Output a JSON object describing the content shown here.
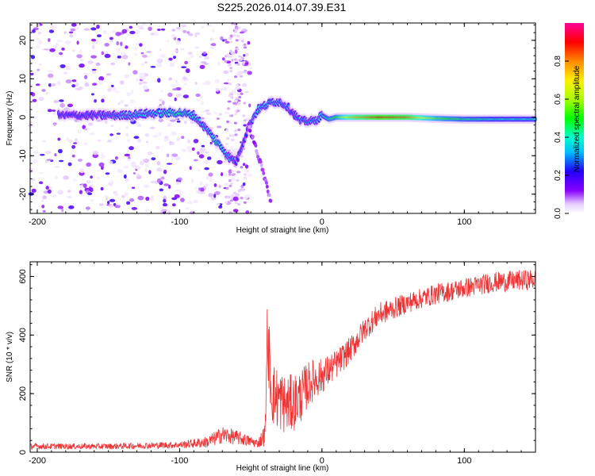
{
  "figure": {
    "title": "S225.2026.014.07.39.E31"
  },
  "chart_data": [
    {
      "type": "heatmap",
      "title": "S225.2026.014.07.39.E31",
      "xlabel": "Height of straight line (km)",
      "ylabel": "Frequency (Hz)",
      "xlim": [
        -205,
        150
      ],
      "ylim": [
        -25,
        24.5
      ],
      "xticks": [
        -200,
        -100,
        0,
        100
      ],
      "xtick_labels": [
        "-200",
        "-100",
        "0",
        "100"
      ],
      "yticks": [
        -20,
        -10,
        0,
        10,
        20
      ],
      "ytick_labels": [
        "-20",
        "-10",
        "0",
        "10",
        "20"
      ],
      "colorbar": {
        "label": "Normalized spectral amplitude",
        "range": [
          0,
          1
        ],
        "ticks": [
          0.0,
          0.2,
          0.4,
          0.6,
          0.8
        ],
        "tick_labels": [
          "0.0",
          "0.2",
          "0.4",
          "0.6",
          "0.8"
        ],
        "colormap": "rainbow (white-violet-blue-cyan-green-yellow-red-magenta)"
      },
      "ridge": {
        "description": "dominant spectral peak (Doppler frequency) vs. height",
        "x": [
          -180,
          -160,
          -140,
          -120,
          -100,
          -90,
          -80,
          -75,
          -70,
          -65,
          -60,
          -52,
          -48,
          -45,
          -40,
          -35,
          -30,
          -25,
          -20,
          -15,
          -10,
          -5,
          0,
          5,
          10,
          20,
          40,
          60,
          80,
          100,
          120,
          150
        ],
        "y": [
          0.5,
          0.5,
          0.5,
          1.0,
          1.2,
          0.5,
          -3.5,
          -6.0,
          -8.0,
          -10.5,
          -11.5,
          -3.0,
          0.0,
          2.0,
          3.0,
          4.0,
          4.0,
          3.0,
          1.0,
          -1.0,
          -1.0,
          -1.0,
          0.5,
          -0.5,
          0.0,
          0.0,
          0.0,
          0.0,
          -0.3,
          -0.5,
          -0.5,
          -0.5
        ],
        "amplitude": [
          0.25,
          0.25,
          0.3,
          0.35,
          0.45,
          0.35,
          0.3,
          0.45,
          0.4,
          0.3,
          0.25,
          0.25,
          0.3,
          0.35,
          0.35,
          0.35,
          0.3,
          0.3,
          0.25,
          0.3,
          0.3,
          0.3,
          0.35,
          0.45,
          0.5,
          0.75,
          0.9,
          0.85,
          0.55,
          0.45,
          0.4,
          0.4
        ]
      },
      "secondary_branch": {
        "description": "weaker descending branch below 0 km",
        "x": [
          -52,
          -48,
          -44,
          -40,
          -36
        ],
        "y": [
          -2,
          -6,
          -11,
          -16,
          -22
        ]
      },
      "noise_region_x": [
        -205,
        -50
      ]
    },
    {
      "type": "line",
      "xlabel": "Height of straight line (km)",
      "ylabel": "SNR (10 * v/v)",
      "xlim": [
        -205,
        150
      ],
      "ylim": [
        0,
        650
      ],
      "xticks": [
        -200,
        -100,
        0,
        100
      ],
      "xtick_labels": [
        "-200",
        "-100",
        "0",
        "100"
      ],
      "yticks": [
        0,
        200,
        400,
        600
      ],
      "ytick_labels": [
        "0",
        "200",
        "400",
        "600"
      ],
      "series": [
        {
          "name": "SNR",
          "color": "#ee3333",
          "envelope_x": [
            -205,
            -150,
            -100,
            -80,
            -70,
            -60,
            -45,
            -40,
            -38,
            -35,
            -30,
            -25,
            -20,
            -15,
            -10,
            -5,
            0,
            10,
            20,
            30,
            40,
            60,
            80,
            100,
            120,
            150
          ],
          "envelope_y": [
            20,
            20,
            25,
            35,
            60,
            50,
            30,
            60,
            350,
            200,
            180,
            160,
            170,
            190,
            230,
            250,
            260,
            300,
            350,
            420,
            470,
            510,
            540,
            560,
            580,
            590
          ],
          "noise_amplitude": [
            10,
            10,
            12,
            20,
            30,
            25,
            15,
            40,
            100,
            110,
            110,
            100,
            100,
            90,
            80,
            70,
            60,
            50,
            45,
            40,
            40,
            35,
            35,
            35,
            35,
            35
          ]
        }
      ]
    }
  ]
}
